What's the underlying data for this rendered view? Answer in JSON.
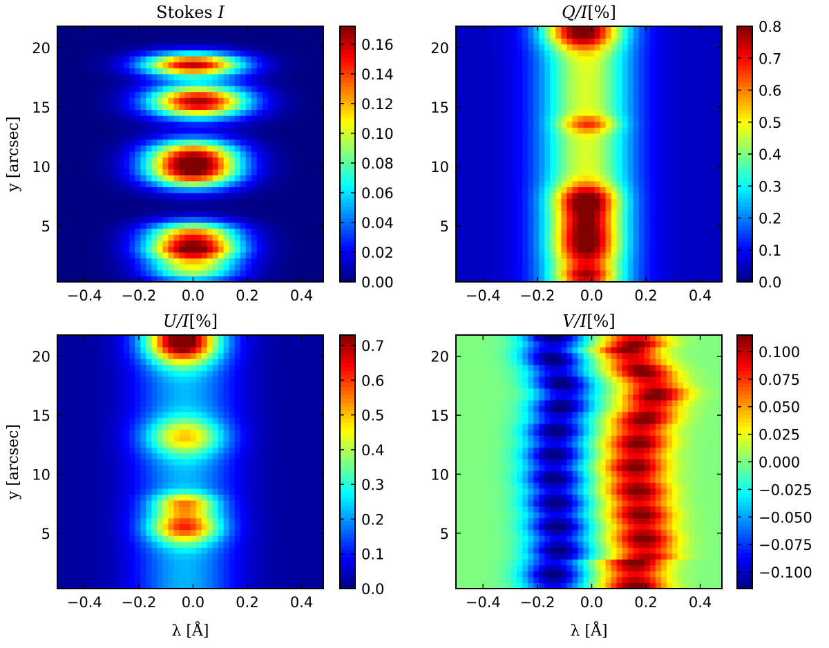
{
  "figure": {
    "description_free": true
  },
  "chart_data": [
    {
      "id": "stokes-i",
      "type": "heatmap",
      "title": "Stokes ",
      "title_var": "I",
      "title_suffix": "",
      "xlabel": "",
      "ylabel": "y [arcsec]",
      "xlim": [
        -0.5,
        0.48
      ],
      "ylim": [
        0.3,
        21.8
      ],
      "xticks": [
        -0.4,
        -0.2,
        0.0,
        0.2,
        0.4
      ],
      "xtick_labels": [
        "−0.4",
        "−0.2",
        "0.0",
        "0.2",
        "0.4"
      ],
      "yticks": [
        5,
        10,
        15,
        20
      ],
      "ytick_labels": [
        "5",
        "10",
        "15",
        "20"
      ],
      "colorbar": {
        "range": [
          0.0,
          0.172
        ],
        "ticks": [
          0.0,
          0.02,
          0.04,
          0.06,
          0.08,
          0.1,
          0.12,
          0.14,
          0.16
        ],
        "tick_labels": [
          "0.00",
          "0.02",
          "0.04",
          "0.06",
          "0.08",
          "0.10",
          "0.12",
          "0.14",
          "0.16"
        ]
      },
      "colormap": "jet",
      "model": {
        "background": 0.0,
        "blobs": [
          {
            "x0": 0.0,
            "y0": 18.6,
            "sx": 0.13,
            "sy": 0.7,
            "a": 0.16
          },
          {
            "x0": 0.02,
            "y0": 15.5,
            "sx": 0.13,
            "sy": 1.0,
            "a": 0.165
          },
          {
            "x0": 0.0,
            "y0": 11.2,
            "sx": 0.12,
            "sy": 0.9,
            "a": 0.11
          },
          {
            "x0": 0.0,
            "y0": 9.6,
            "sx": 0.12,
            "sy": 1.0,
            "a": 0.155
          },
          {
            "x0": 0.0,
            "y0": 4.3,
            "sx": 0.12,
            "sy": 0.8,
            "a": 0.13
          },
          {
            "x0": 0.0,
            "y0": 3.0,
            "sx": 0.12,
            "sy": 0.6,
            "a": 0.12
          },
          {
            "x0": 0.0,
            "y0": 1.5,
            "sx": 0.12,
            "sy": 0.9,
            "a": 0.1
          }
        ]
      }
    },
    {
      "id": "stokes-q",
      "type": "heatmap",
      "title": "",
      "title_var": "Q/I",
      "title_suffix": "[%]",
      "xlabel": "",
      "ylabel": "",
      "xlim": [
        -0.5,
        0.48
      ],
      "ylim": [
        0.3,
        21.8
      ],
      "xticks": [
        -0.4,
        -0.2,
        0.0,
        0.2,
        0.4
      ],
      "xtick_labels": [
        "−0.4",
        "−0.2",
        "0.0",
        "0.2",
        "0.4"
      ],
      "yticks": [
        5,
        10,
        15,
        20
      ],
      "ytick_labels": [
        "5",
        "10",
        "15",
        "20"
      ],
      "colorbar": {
        "range": [
          0.0,
          0.8
        ],
        "ticks": [
          0.0,
          0.1,
          0.2,
          0.3,
          0.4,
          0.5,
          0.6,
          0.7,
          0.8
        ],
        "tick_labels": [
          "0.0",
          "0.1",
          "0.2",
          "0.3",
          "0.4",
          "0.5",
          "0.6",
          "0.7",
          "0.8"
        ]
      },
      "colormap": "jet",
      "model": {
        "background": 0.05,
        "band": {
          "x0": -0.02,
          "sx": 0.12,
          "a": 0.42
        },
        "blobs": [
          {
            "x0": -0.04,
            "y0": 21.4,
            "sx": 0.09,
            "sy": 1.0,
            "a": 0.38
          },
          {
            "x0": -0.01,
            "y0": 13.6,
            "sx": 0.07,
            "sy": 0.5,
            "a": 0.2
          },
          {
            "x0": -0.02,
            "y0": 7.3,
            "sx": 0.08,
            "sy": 0.9,
            "a": 0.3
          },
          {
            "x0": -0.02,
            "y0": 5.2,
            "sx": 0.08,
            "sy": 1.4,
            "a": 0.28
          },
          {
            "x0": -0.02,
            "y0": 3.0,
            "sx": 0.08,
            "sy": 1.2,
            "a": 0.26
          },
          {
            "x0": -0.02,
            "y0": 0.8,
            "sx": 0.07,
            "sy": 0.6,
            "a": 0.26
          }
        ]
      }
    },
    {
      "id": "stokes-u",
      "type": "heatmap",
      "title": "",
      "title_var": "U/I",
      "title_suffix": "[%]",
      "xlabel": "λ [Å]",
      "ylabel": "y [arcsec]",
      "xlim": [
        -0.5,
        0.48
      ],
      "ylim": [
        0.3,
        21.8
      ],
      "xticks": [
        -0.4,
        -0.2,
        0.0,
        0.2,
        0.4
      ],
      "xtick_labels": [
        "−0.4",
        "−0.2",
        "0.0",
        "0.2",
        "0.4"
      ],
      "yticks": [
        5,
        10,
        15,
        20
      ],
      "ytick_labels": [
        "5",
        "10",
        "15",
        "20"
      ],
      "colorbar": {
        "range": [
          0.0,
          0.73
        ],
        "ticks": [
          0.0,
          0.1,
          0.2,
          0.3,
          0.4,
          0.5,
          0.6,
          0.7
        ],
        "tick_labels": [
          "0.0",
          "0.1",
          "0.2",
          "0.3",
          "0.4",
          "0.5",
          "0.6",
          "0.7"
        ]
      },
      "colormap": "jet",
      "model": {
        "background": 0.02,
        "band": {
          "x0": -0.03,
          "sx": 0.13,
          "a": 0.2
        },
        "blobs": [
          {
            "x0": -0.04,
            "y0": 21.3,
            "sx": 0.09,
            "sy": 1.3,
            "a": 0.58
          },
          {
            "x0": -0.03,
            "y0": 13.2,
            "sx": 0.1,
            "sy": 1.1,
            "a": 0.28
          },
          {
            "x0": -0.03,
            "y0": 7.6,
            "sx": 0.08,
            "sy": 0.6,
            "a": 0.28
          },
          {
            "x0": -0.03,
            "y0": 5.6,
            "sx": 0.09,
            "sy": 1.0,
            "a": 0.4
          }
        ]
      }
    },
    {
      "id": "stokes-v",
      "type": "heatmap",
      "title": "",
      "title_var": "V/I",
      "title_suffix": "[%]",
      "xlabel": "λ [Å]",
      "ylabel": "",
      "xlim": [
        -0.5,
        0.48
      ],
      "ylim": [
        0.3,
        21.8
      ],
      "xticks": [
        -0.4,
        -0.2,
        0.0,
        0.2,
        0.4
      ],
      "xtick_labels": [
        "−0.4",
        "−0.2",
        "0.0",
        "0.2",
        "0.4"
      ],
      "yticks": [
        5,
        10,
        15,
        20
      ],
      "ytick_labels": [
        "5",
        "10",
        "15",
        "20"
      ],
      "colorbar": {
        "range": [
          -0.115,
          0.115
        ],
        "ticks": [
          -0.1,
          -0.075,
          -0.05,
          -0.025,
          0.0,
          0.025,
          0.05,
          0.075,
          0.1
        ],
        "tick_labels": [
          "−0.100",
          "−0.075",
          "−0.050",
          "−0.025",
          "0.000",
          "0.025",
          "0.050",
          "0.075",
          "0.100"
        ]
      },
      "colormap": "jet",
      "model": {
        "background": 0.0,
        "antisym": {
          "neg_x": -0.14,
          "pos_x": 0.16,
          "sx": 0.08,
          "a": 0.105,
          "wiggle": [
            {
              "y": 21.0,
              "dx": -0.04
            },
            {
              "y": 17.0,
              "dx": 0.08
            },
            {
              "y": 14.0,
              "dx": 0.02
            },
            {
              "y": 10.5,
              "dx": 0.0
            },
            {
              "y": 7.0,
              "dx": 0.02
            },
            {
              "y": 3.0,
              "dx": 0.04
            }
          ]
        }
      }
    }
  ]
}
